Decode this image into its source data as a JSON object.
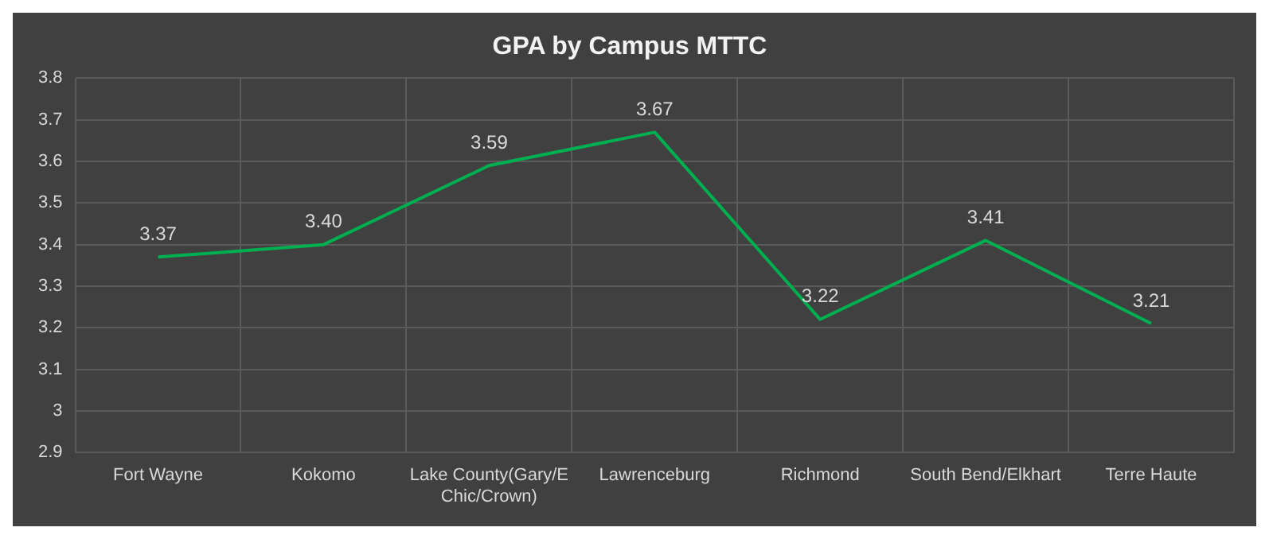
{
  "chart_data": {
    "type": "line",
    "title": "GPA by Campus MTTC",
    "categories": [
      "Fort Wayne",
      "Kokomo",
      "Lake County(Gary/E Chic/Crown)",
      "Lawrenceburg",
      "Richmond",
      "South Bend/Elkhart",
      "Terre Haute"
    ],
    "series": [
      {
        "color": "#00b050",
        "values": [
          3.37,
          3.4,
          3.59,
          3.67,
          3.22,
          3.41,
          3.21
        ],
        "value_labels": [
          "3.37",
          "3.40",
          "3.59",
          "3.67",
          "3.22",
          "3.41",
          "3.21"
        ]
      }
    ],
    "ylim": [
      2.9,
      3.8
    ],
    "yticks": [
      2.9,
      3,
      3.1,
      3.2,
      3.3,
      3.4,
      3.5,
      3.6,
      3.7,
      3.8
    ],
    "grid": true,
    "legend": false,
    "marker": "none",
    "line_style": "solid"
  }
}
